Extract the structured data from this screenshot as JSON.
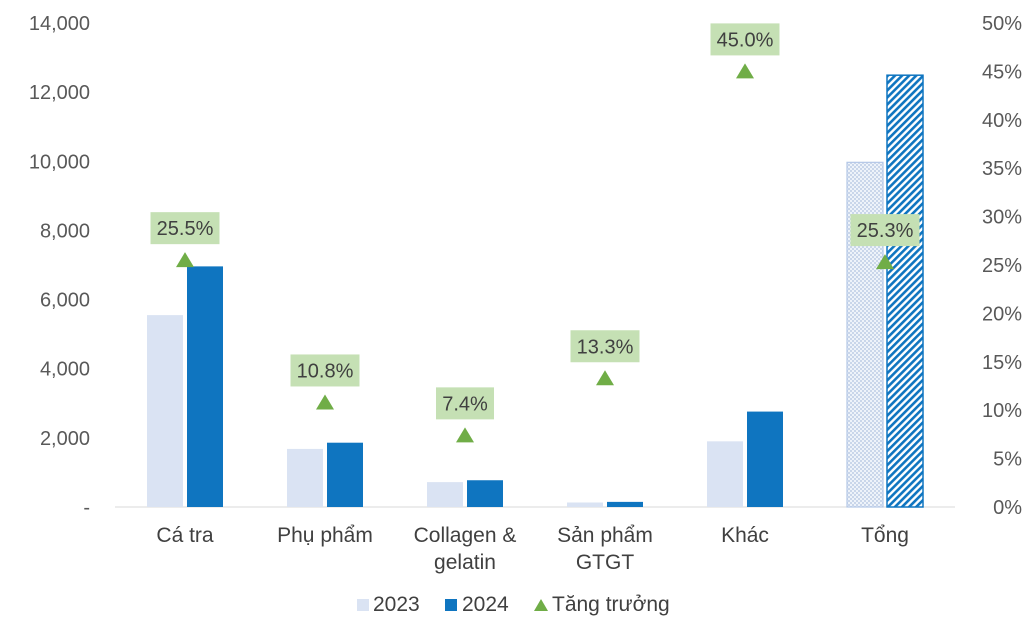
{
  "chart_data": {
    "type": "bar",
    "categories": [
      [
        "Cá tra"
      ],
      [
        "Phụ phẩm"
      ],
      [
        "Collagen &",
        "gelatin"
      ],
      [
        "Sản phẩm",
        "GTGT"
      ],
      [
        "Khác"
      ],
      [
        "Tổng"
      ]
    ],
    "series": [
      {
        "name": "2023",
        "type": "bar",
        "axis": "left",
        "color": "#dae3f3",
        "values": [
          5550,
          1680,
          720,
          130,
          1900,
          9970
        ]
      },
      {
        "name": "2024",
        "type": "bar",
        "axis": "left",
        "color": "#0f75c0",
        "values": [
          6960,
          1860,
          774,
          148,
          2760,
          12490
        ]
      },
      {
        "name": "Tăng trưởng",
        "type": "scatter",
        "axis": "right",
        "color": "#70ad47",
        "marker": "triangle",
        "values": [
          25.5,
          10.8,
          7.4,
          13.3,
          45.0,
          25.3
        ]
      }
    ],
    "data_labels": [
      "25.5%",
      "10.8%",
      "7.4%",
      "13.3%",
      "45.0%",
      "25.3%"
    ],
    "label_bg_color": "#c5e0b4",
    "total_category_pattern": "hatched",
    "y_left": {
      "min": 0,
      "max": 14000,
      "step": 2000,
      "ticks": [
        "-",
        "2,000",
        "4,000",
        "6,000",
        "8,000",
        "10,000",
        "12,000",
        "14,000"
      ]
    },
    "y_right": {
      "min": 0,
      "max": 50,
      "step": 5,
      "ticks": [
        "0%",
        "5%",
        "10%",
        "15%",
        "20%",
        "25%",
        "30%",
        "35%",
        "40%",
        "45%",
        "50%"
      ]
    },
    "grid": false,
    "legend_position": "bottom",
    "legend": [
      "2023",
      "2024",
      "Tăng trưởng"
    ]
  }
}
